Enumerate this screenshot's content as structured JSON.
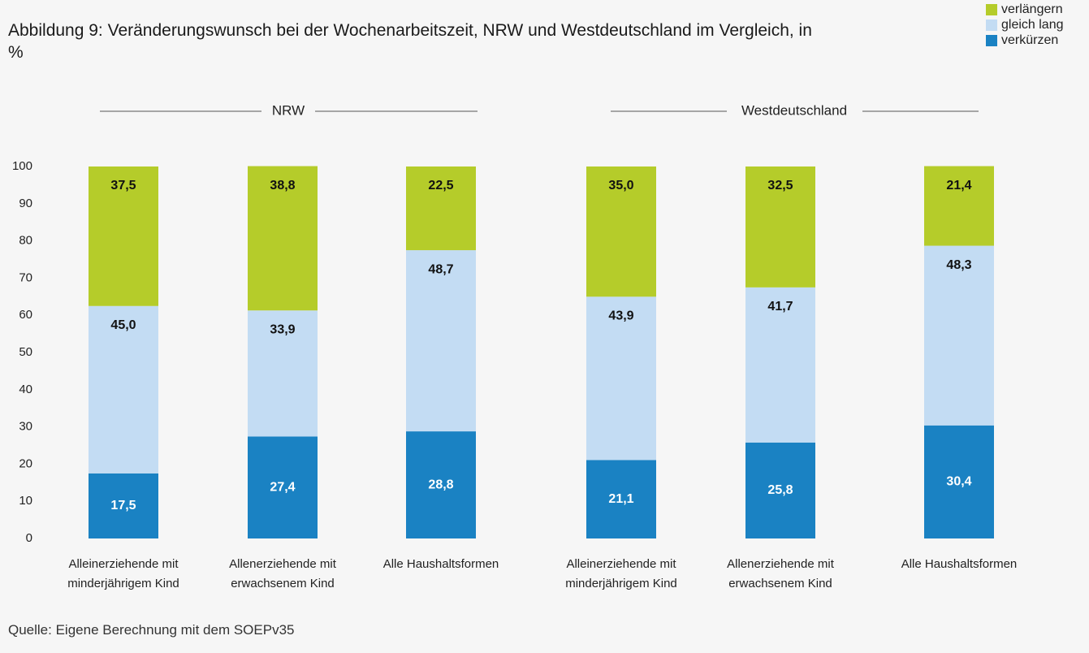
{
  "chart_data": {
    "type": "stacked_bar",
    "title": "Abbildung 9: Veränderungswunsch bei der Wochenarbeitszeit, NRW und Westdeutschland im Vergleich, in %",
    "source": "Quelle: Eigene Berechnung mit dem SOEPv35",
    "group_labels": [
      "NRW",
      "Westdeutschland"
    ],
    "categories": [
      "Alleinerziehende mit minderjährigem Kind",
      "Allenerziehende mit erwachsenem Kind",
      "Alle Haushaltsformen",
      "Alleinerziehende mit minderjährigem Kind",
      "Allenerziehende mit erwachsenem Kind",
      "Alle Haushaltsformen"
    ],
    "series": [
      {
        "name": "verkürzen",
        "color": "#1a82c3",
        "label_color": "#ffffff",
        "values": [
          17.5,
          27.4,
          28.8,
          21.1,
          25.8,
          30.4
        ],
        "value_labels": [
          "17,5",
          "27,4",
          "28,8",
          "21,1",
          "25,8",
          "30,4"
        ]
      },
      {
        "name": "gleich lang",
        "color": "#c3dcf3",
        "label_color": "#111111",
        "values": [
          45.0,
          33.9,
          48.7,
          43.9,
          41.7,
          48.3
        ],
        "value_labels": [
          "45,0",
          "33,9",
          "48,7",
          "43,9",
          "41,7",
          "48,3"
        ]
      },
      {
        "name": "verlängern",
        "color": "#b5cc2a",
        "label_color": "#111111",
        "values": [
          37.5,
          38.8,
          22.5,
          35.0,
          32.5,
          21.4
        ],
        "value_labels": [
          "37,5",
          "38,8",
          "22,5",
          "35,0",
          "32,5",
          "21,4"
        ]
      }
    ],
    "ylim": [
      0,
      100
    ],
    "yticks": [
      0,
      10,
      20,
      30,
      40,
      50,
      60,
      70,
      80,
      90,
      100
    ],
    "grid": false,
    "legend": "top-right"
  }
}
